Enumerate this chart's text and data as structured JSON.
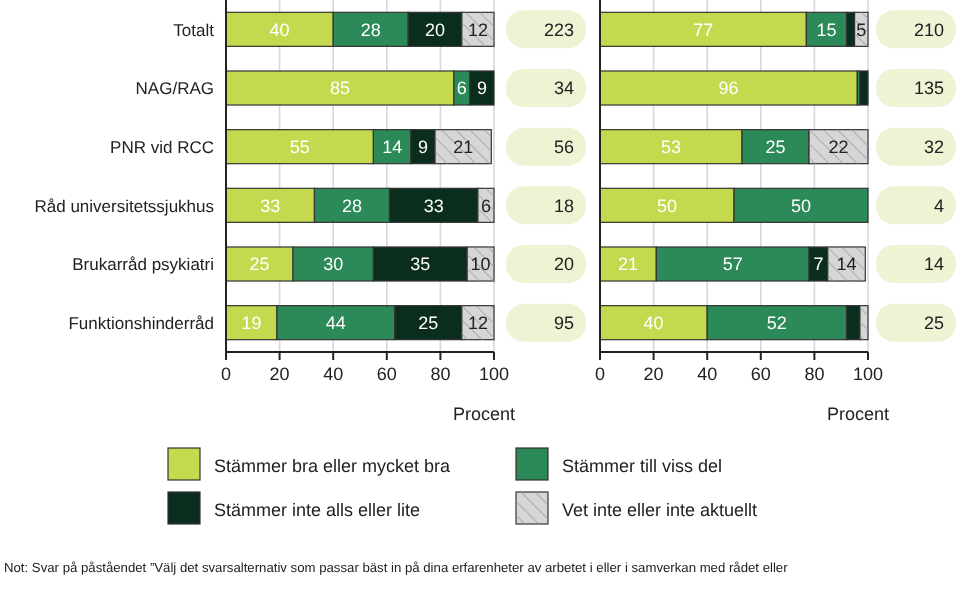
{
  "chart_data": [
    {
      "type": "bar",
      "orientation": "horizontal",
      "stacked": true,
      "categories": [
        "Totalt",
        "NAG/RAG",
        "PNR vid RCC",
        "Råd universitetssjukhus",
        "Brukarråd psykiatri",
        "Funktionshinderråd"
      ],
      "series": [
        {
          "name": "Stämmer bra eller mycket bra",
          "color": "#c5d94e",
          "values": [
            40,
            85,
            55,
            33,
            25,
            19
          ],
          "value_labels": [
            "40",
            "85",
            "55",
            "33",
            "25",
            "19"
          ]
        },
        {
          "name": "Stämmer till viss del",
          "color": "#2b8a57",
          "values": [
            28,
            6,
            14,
            28,
            30,
            44
          ],
          "value_labels": [
            "28",
            "6",
            "14",
            "28",
            "30",
            "44"
          ]
        },
        {
          "name": "Stämmer inte alls eller lite",
          "color": "#0b2d1d",
          "values": [
            20,
            9,
            9,
            33,
            35,
            25
          ],
          "value_labels": [
            "20",
            "9",
            "9",
            "33",
            "35",
            "25"
          ]
        },
        {
          "name": "Vet inte eller inte aktuellt",
          "color": "#d6d6d6",
          "values": [
            12,
            null,
            21,
            6,
            10,
            12
          ],
          "value_labels": [
            "12",
            null,
            "21",
            "6",
            "10",
            "12"
          ]
        }
      ],
      "xlim": [
        0,
        100
      ],
      "xticks": [
        0,
        20,
        40,
        60,
        80,
        100
      ],
      "xlabel": "Procent",
      "grid": "x",
      "legend": "bottom",
      "annotations": [
        "223",
        "34",
        "56",
        "18",
        "20",
        "95",
        "Not: Svar på påståendet ”Välj det svarsalternativ som passar bäst in på dina erfarenheter av arbetet i eller i samverkan med rådet eller"
      ]
    },
    {
      "type": "bar",
      "orientation": "horizontal",
      "stacked": true,
      "categories": [
        null,
        null,
        null,
        null,
        null,
        null
      ],
      "tick_labels": "x",
      "series": [
        {
          "color": "#c5d94e",
          "values": [
            77,
            96,
            53,
            50,
            21,
            40
          ],
          "value_labels": [
            "77",
            "96",
            "53",
            "50",
            "21",
            "40"
          ]
        },
        {
          "color": "#2b8a57",
          "values": [
            15,
            1,
            25,
            50,
            57,
            52
          ],
          "value_labels": [
            "15",
            null,
            "25",
            "50",
            "57",
            "52"
          ]
        },
        {
          "color": "#0b2d1d",
          "values": [
            3,
            3,
            null,
            null,
            7,
            5
          ],
          "value_labels": [
            null,
            null,
            null,
            null,
            "7",
            null
          ]
        },
        {
          "color": "#d6d6d6",
          "values": [
            5,
            null,
            22,
            null,
            14,
            3
          ],
          "value_labels": [
            "5",
            null,
            "22",
            null,
            "14",
            null
          ]
        }
      ],
      "xlim": [
        0,
        100
      ],
      "xticks": [
        0,
        20,
        40,
        60,
        80,
        100
      ],
      "xlabel": "Procent",
      "grid": "x",
      "annotations": [
        "210",
        "135",
        "32",
        "4",
        "14",
        "25"
      ]
    }
  ]
}
